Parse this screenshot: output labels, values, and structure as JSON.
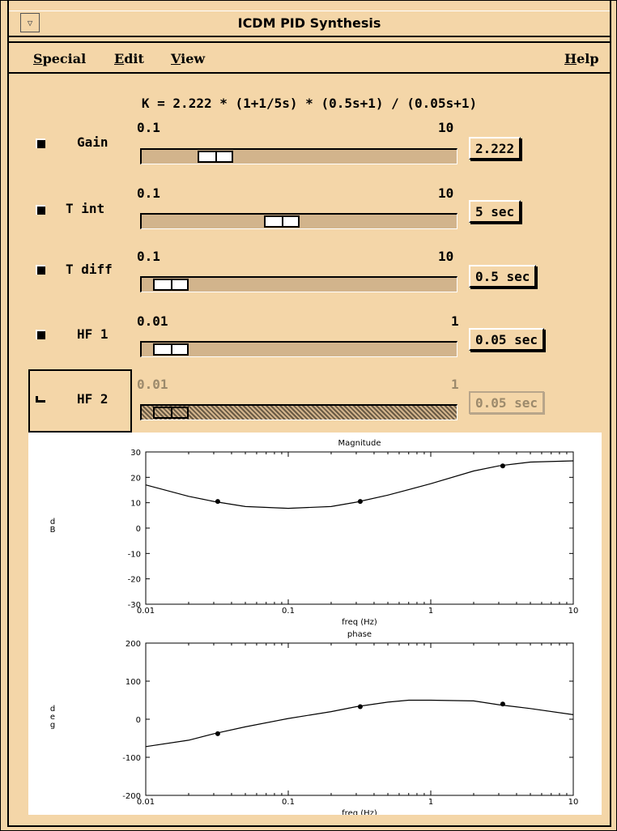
{
  "window": {
    "title": "ICDM PID Synthesis"
  },
  "menu": {
    "special": {
      "first": "S",
      "rest": "pecial"
    },
    "edit": {
      "first": "E",
      "rest": "dit"
    },
    "view": {
      "first": "V",
      "rest": "iew"
    },
    "help": {
      "first": "H",
      "rest": "elp"
    }
  },
  "formula": "K = 2.222 * (1+1/5s) * (0.5s+1) / (0.05s+1)",
  "params": [
    {
      "label": "Gain",
      "min": "0.1",
      "max": "10",
      "value": "2.222",
      "slider_fraction": 0.2,
      "enabled": true
    },
    {
      "label": "T int",
      "min": "0.1",
      "max": "10",
      "value": "5 sec",
      "slider_fraction": 0.44,
      "enabled": true
    },
    {
      "label": "T diff",
      "min": "0.1",
      "max": "10",
      "value": "0.5 sec",
      "slider_fraction": 0.04,
      "enabled": true
    },
    {
      "label": "HF 1",
      "min": "0.01",
      "max": "1",
      "value": "0.05 sec",
      "slider_fraction": 0.04,
      "enabled": true
    },
    {
      "label": "HF 2",
      "min": "0.01",
      "max": "1",
      "value": "0.05 sec",
      "slider_fraction": 0.04,
      "enabled": false
    }
  ],
  "chart_data": [
    {
      "type": "line",
      "title": "Magnitude",
      "xlabel": "freq (Hz)",
      "ylabel": "dB",
      "xscale": "log",
      "xlim": [
        0.01,
        10
      ],
      "ylim": [
        -30,
        30
      ],
      "xticks": [
        "0.01",
        "0.1",
        "1",
        "10"
      ],
      "yticks": [
        "30",
        "20",
        "10",
        "0",
        "-10",
        "-20",
        "-30"
      ],
      "series": [
        {
          "values": [
            [
              0.01,
              17
            ],
            [
              0.02,
              12.5
            ],
            [
              0.03,
              10.5
            ],
            [
              0.05,
              8.5
            ],
            [
              0.1,
              7.8
            ],
            [
              0.2,
              8.5
            ],
            [
              0.3,
              10.2
            ],
            [
              0.5,
              13
            ],
            [
              1,
              17.5
            ],
            [
              2,
              22.5
            ],
            [
              3,
              24.5
            ],
            [
              5,
              26
            ],
            [
              10,
              26.5
            ]
          ]
        }
      ],
      "markers": [
        [
          0.032,
          10.5
        ],
        [
          0.32,
          10.5
        ],
        [
          3.2,
          24.5
        ]
      ]
    },
    {
      "type": "line",
      "title": "phase",
      "xlabel": "freq (Hz)",
      "ylabel": "deg",
      "xscale": "log",
      "xlim": [
        0.01,
        10
      ],
      "ylim": [
        -200,
        200
      ],
      "xticks": [
        "0.01",
        "0.1",
        "1",
        "10"
      ],
      "yticks": [
        "200",
        "100",
        "0",
        "-100",
        "-200"
      ],
      "series": [
        {
          "values": [
            [
              0.01,
              -72
            ],
            [
              0.02,
              -55
            ],
            [
              0.03,
              -38
            ],
            [
              0.05,
              -20
            ],
            [
              0.1,
              2
            ],
            [
              0.2,
              20
            ],
            [
              0.3,
              33
            ],
            [
              0.5,
              45
            ],
            [
              0.7,
              50
            ],
            [
              1,
              50
            ],
            [
              2,
              48
            ],
            [
              3,
              38
            ],
            [
              5,
              28
            ],
            [
              10,
              12
            ]
          ]
        }
      ],
      "markers": [
        [
          0.032,
          -38
        ],
        [
          0.32,
          33
        ],
        [
          3.2,
          40
        ]
      ]
    }
  ]
}
